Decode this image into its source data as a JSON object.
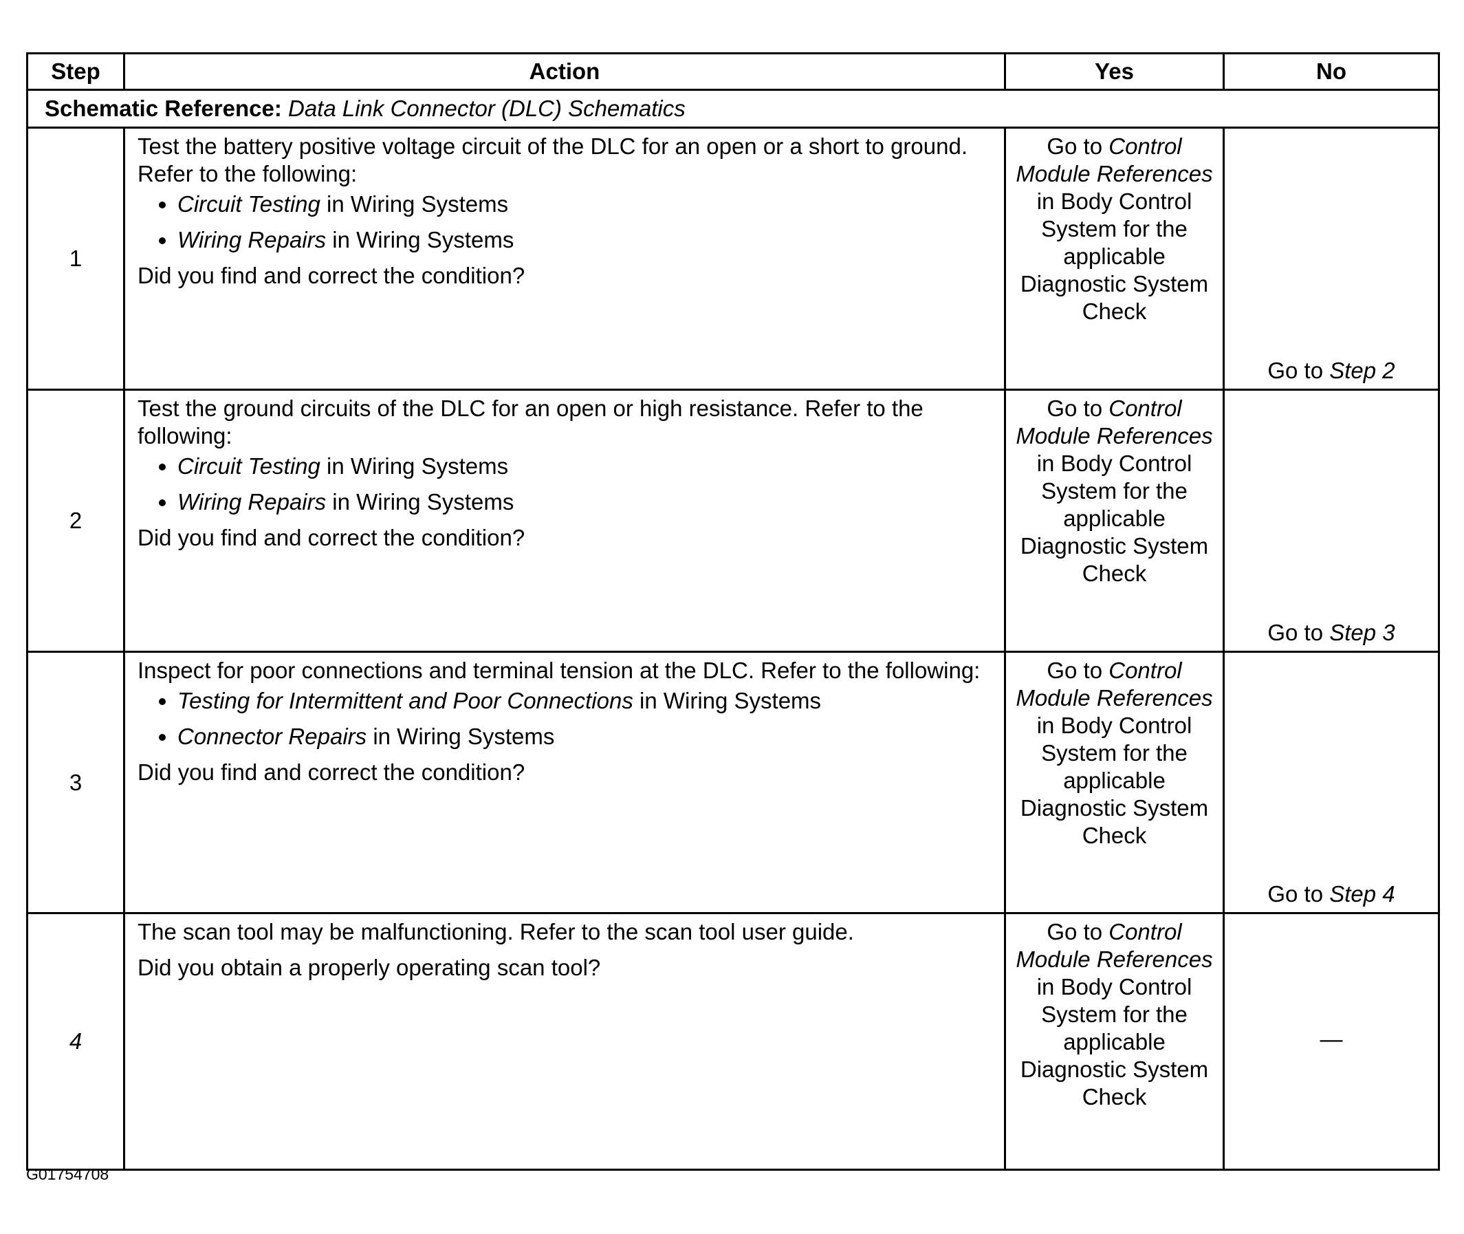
{
  "headers": {
    "step": "Step",
    "action": "Action",
    "yes": "Yes",
    "no": "No"
  },
  "schematic": {
    "label": "Schematic Reference:",
    "value": "Data Link Connector (DLC) Schematics"
  },
  "yes_text": {
    "go_to": "Go to",
    "link": "Control Module References",
    "rest": "in Body Control System for the applicable Diagnostic System Check"
  },
  "rows": [
    {
      "step": "1",
      "intro": "Test the battery positive voltage circuit of the DLC for an open or a short to ground. Refer to the following:",
      "bullets": [
        {
          "ref": "Circuit Testing",
          "suffix": "in Wiring Systems"
        },
        {
          "ref": "Wiring Repairs",
          "suffix": "in Wiring Systems"
        }
      ],
      "question": "Did you find and correct the condition?",
      "no_prefix": "Go to",
      "no_link": "Step 2"
    },
    {
      "step": "2",
      "intro": "Test the ground circuits of the DLC for an open or high resistance. Refer to the following:",
      "bullets": [
        {
          "ref": "Circuit Testing",
          "suffix": "in Wiring Systems"
        },
        {
          "ref": "Wiring Repairs",
          "suffix": "in Wiring Systems"
        }
      ],
      "question": "Did you find and correct the condition?",
      "no_prefix": "Go to",
      "no_link": "Step 3"
    },
    {
      "step": "3",
      "intro": "Inspect for poor connections and terminal tension at the DLC. Refer to the following:",
      "bullets": [
        {
          "ref": "Testing for Intermittent and Poor Connections",
          "suffix": "in Wiring Systems"
        },
        {
          "ref": "Connector Repairs",
          "suffix": "in Wiring Systems"
        }
      ],
      "question": "Did you find and correct the condition?",
      "no_prefix": "Go to",
      "no_link": "Step 4"
    },
    {
      "step": "4",
      "intro": "The scan tool may be malfunctioning. Refer to the scan tool user guide.",
      "question": "Did you obtain a properly operating scan tool?",
      "no_text": "—"
    }
  ],
  "footer_id": "G01754708"
}
